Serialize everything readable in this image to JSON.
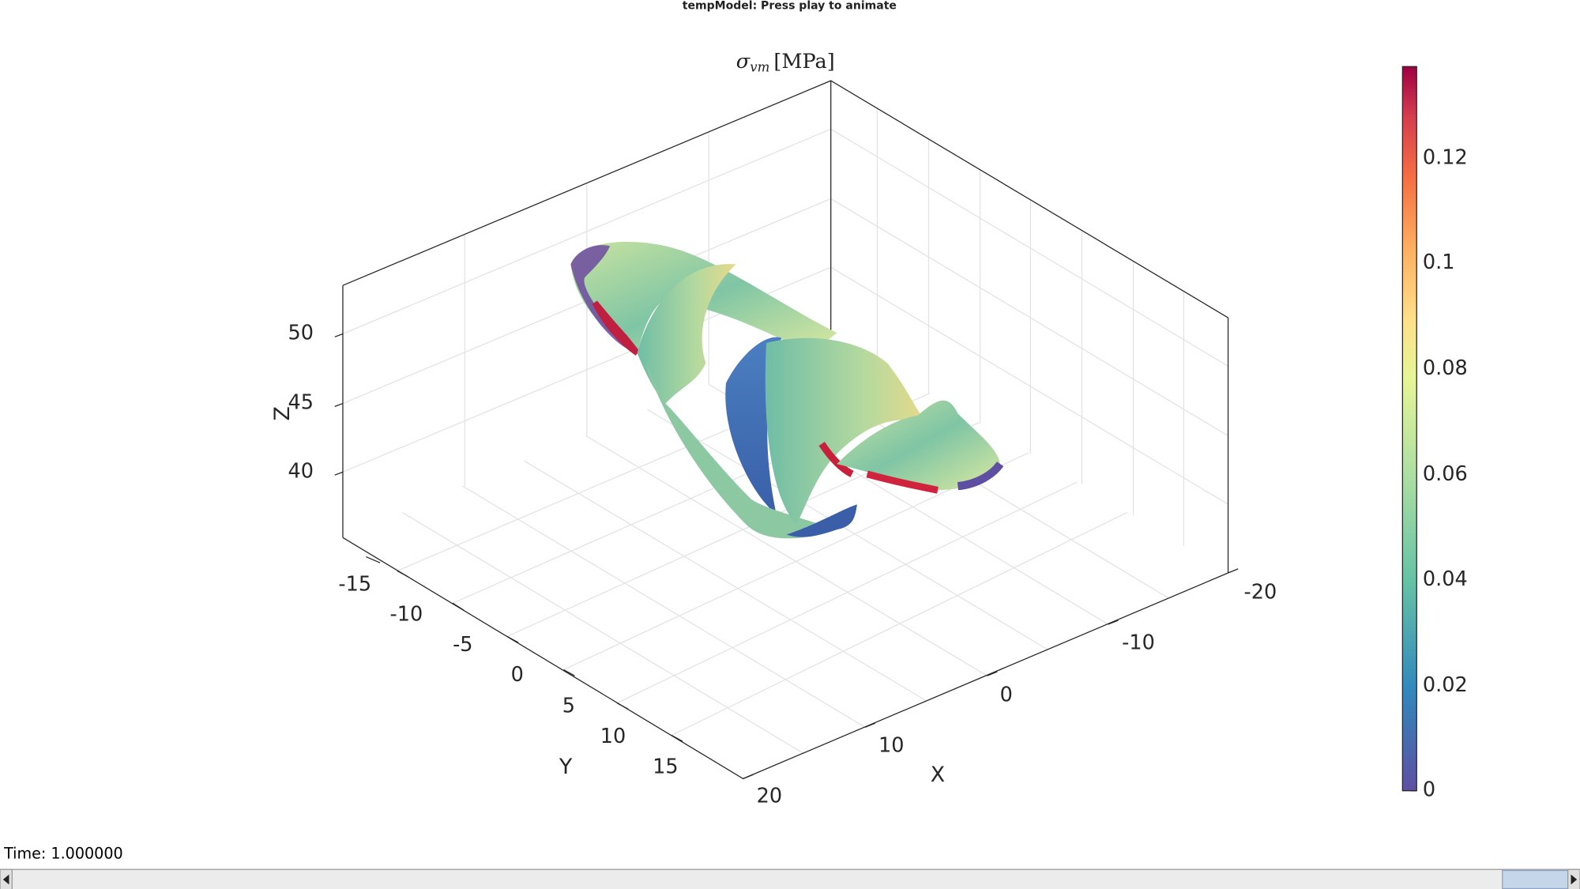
{
  "window_title": "tempModel: Press play to animate",
  "axes": {
    "title": {
      "symbol": "σ",
      "subscript": "vm",
      "unit": "[MPa]"
    },
    "x_label": "X",
    "y_label": "Y",
    "z_label": "Z",
    "x_ticks": [
      20,
      10,
      0,
      -10,
      -20
    ],
    "y_ticks": [
      -15,
      -10,
      -5,
      0,
      5,
      10,
      15
    ],
    "z_ticks": [
      50,
      45,
      40
    ]
  },
  "colorbar": {
    "ticks": [
      0.12,
      0.1,
      0.08,
      0.06,
      0.04,
      0.02,
      0
    ]
  },
  "status": {
    "time": "Time: 1.000000"
  }
}
